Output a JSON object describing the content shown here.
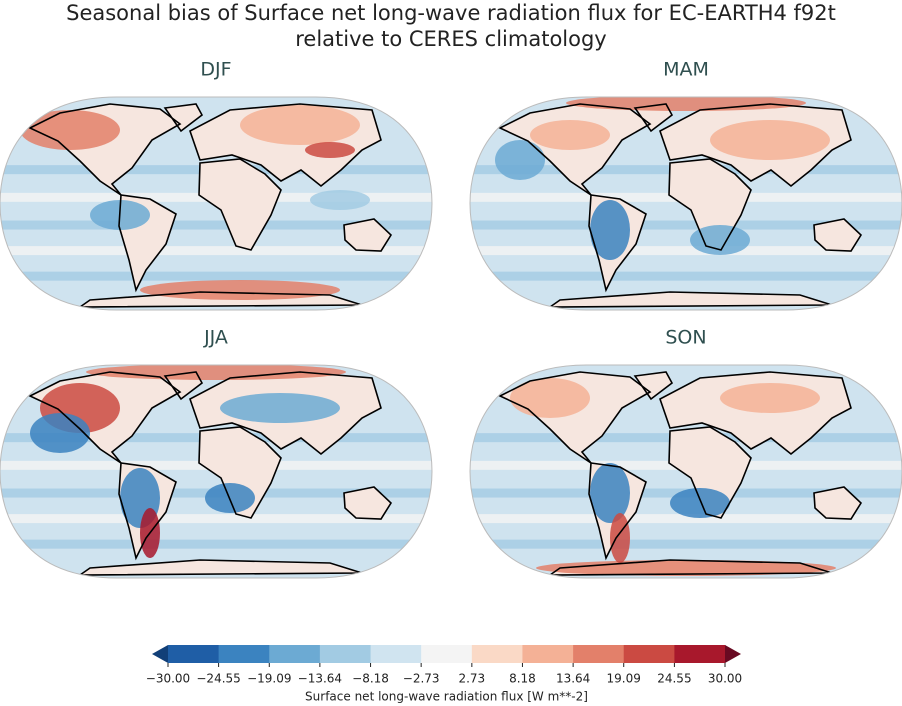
{
  "title": [
    "Seasonal bias of Surface net long-wave radiation flux for EC-EARTH4 f92t",
    "relative to CERES climatology"
  ],
  "panels": [
    "DJF",
    "MAM",
    "JJA",
    "SON"
  ],
  "colorbar": {
    "label": "Surface net long-wave radiation flux [W m**-2]",
    "ticks": [
      {
        "value": -30,
        "label": "−30.00"
      },
      {
        "value": -24.55,
        "label": "−24.55"
      },
      {
        "value": -19.09,
        "label": "−19.09"
      },
      {
        "value": -13.64,
        "label": "−13.64"
      },
      {
        "value": -8.18,
        "label": "−8.18"
      },
      {
        "value": -2.73,
        "label": "−2.73"
      },
      {
        "value": 2.73,
        "label": "2.73"
      },
      {
        "value": 8.18,
        "label": "8.18"
      },
      {
        "value": 13.64,
        "label": "13.64"
      },
      {
        "value": 19.09,
        "label": "19.09"
      },
      {
        "value": 24.55,
        "label": "24.55"
      },
      {
        "value": 30,
        "label": "30.00"
      }
    ],
    "colors": [
      "#1f5ea6",
      "#3b83c0",
      "#6caad3",
      "#a2cbe3",
      "#d0e4f0",
      "#f4f4f4",
      "#fad9c6",
      "#f4b196",
      "#e3806a",
      "#cb4a42",
      "#a8182c"
    ],
    "extend_colors": [
      "#113f78",
      "#690a22"
    ]
  }
}
